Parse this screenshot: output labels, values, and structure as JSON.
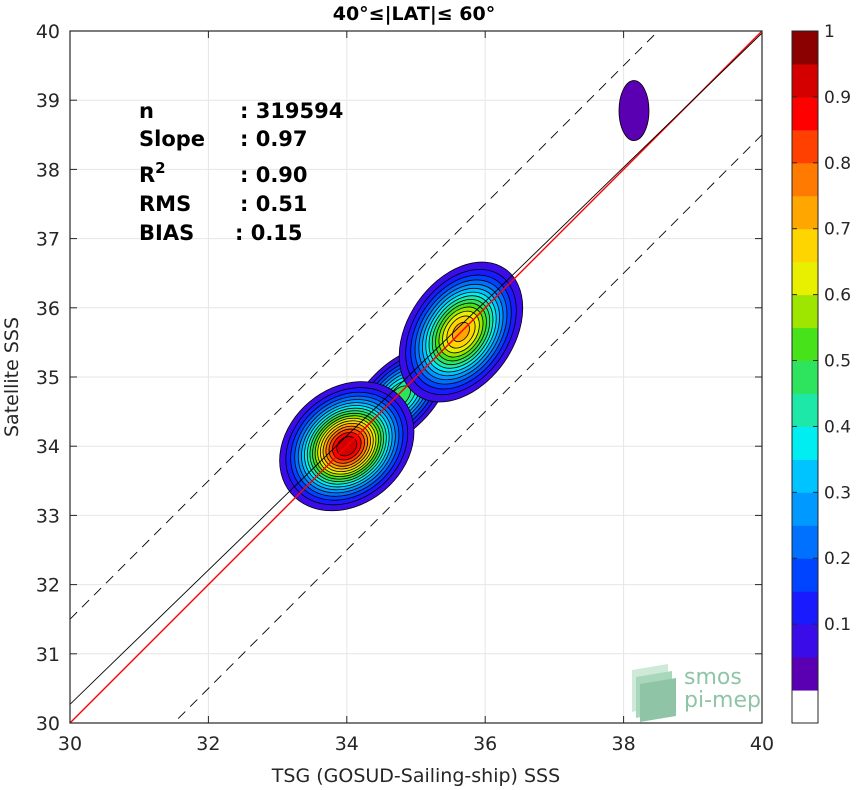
{
  "chart_data": {
    "type": "heatmap",
    "title": "40°≤|LAT|≤ 60°",
    "xlabel": "TSG (GOSUD-Sailing-ship) SSS",
    "ylabel": "Satellite SSS",
    "xlim": [
      30,
      40
    ],
    "ylim": [
      30,
      40
    ],
    "xticks": [
      30,
      32,
      34,
      36,
      38,
      40
    ],
    "yticks": [
      30,
      31,
      32,
      33,
      34,
      35,
      36,
      37,
      38,
      39,
      40
    ],
    "grid": true,
    "stats": [
      {
        "label": "n",
        "value": ": 319594"
      },
      {
        "label": "Slope",
        "value": ": 0.97"
      },
      {
        "label": "R",
        "sup": "2",
        "value": ": 0.90"
      },
      {
        "label": "RMS",
        "value": ": 0.51"
      },
      {
        "label": "BIAS",
        "value": ": 0.15"
      }
    ],
    "lines": [
      {
        "name": "one-to-one",
        "color": "#ff0000",
        "style": "solid",
        "slope": 1,
        "intercept": 0
      },
      {
        "name": "regression",
        "color": "#000000",
        "style": "solid",
        "slope": 0.97,
        "intercept": 1.17
      },
      {
        "name": "upper-bound",
        "color": "#000000",
        "style": "dashed",
        "slope": 1,
        "intercept": 1.5
      },
      {
        "name": "lower-bound",
        "color": "#000000",
        "style": "dashed",
        "slope": 1,
        "intercept": -1.5
      }
    ],
    "density_peaks": [
      {
        "x": 34.0,
        "y": 34.0,
        "value": 1.0
      },
      {
        "x": 35.65,
        "y": 35.65,
        "value": 0.78
      },
      {
        "x": 34.75,
        "y": 34.7,
        "value": 0.55
      },
      {
        "x": 38.15,
        "y": 38.85,
        "value": 0.12
      }
    ],
    "colorbar": {
      "ticks": [
        0.1,
        0.2,
        0.3,
        0.4,
        0.5,
        0.6,
        0.7,
        0.8,
        0.9,
        1
      ],
      "tick_labels": [
        "0.1",
        "0.2",
        "0.3",
        "0.4",
        "0.5",
        "0.6",
        "0.7",
        "0.8",
        "0.9",
        "1"
      ],
      "levels": [
        0.05,
        0.1,
        0.15,
        0.2,
        0.25,
        0.3,
        0.35,
        0.4,
        0.45,
        0.5,
        0.55,
        0.6,
        0.65,
        0.7,
        0.75,
        0.8,
        0.85,
        0.9,
        0.95,
        1.0
      ],
      "colors": [
        "#ffffff",
        "#5a00b2",
        "#3a0de8",
        "#1a1aff",
        "#0044ff",
        "#0070ff",
        "#0099ff",
        "#00c4ff",
        "#00eef2",
        "#1ee8a8",
        "#2ee45f",
        "#48e21a",
        "#9ee600",
        "#e8f000",
        "#ffd500",
        "#ffa600",
        "#ff7a00",
        "#ff4000",
        "#ff0000",
        "#d40000",
        "#8b0000"
      ]
    },
    "logo": {
      "line1": "smos",
      "line2": "pi-mep"
    }
  }
}
